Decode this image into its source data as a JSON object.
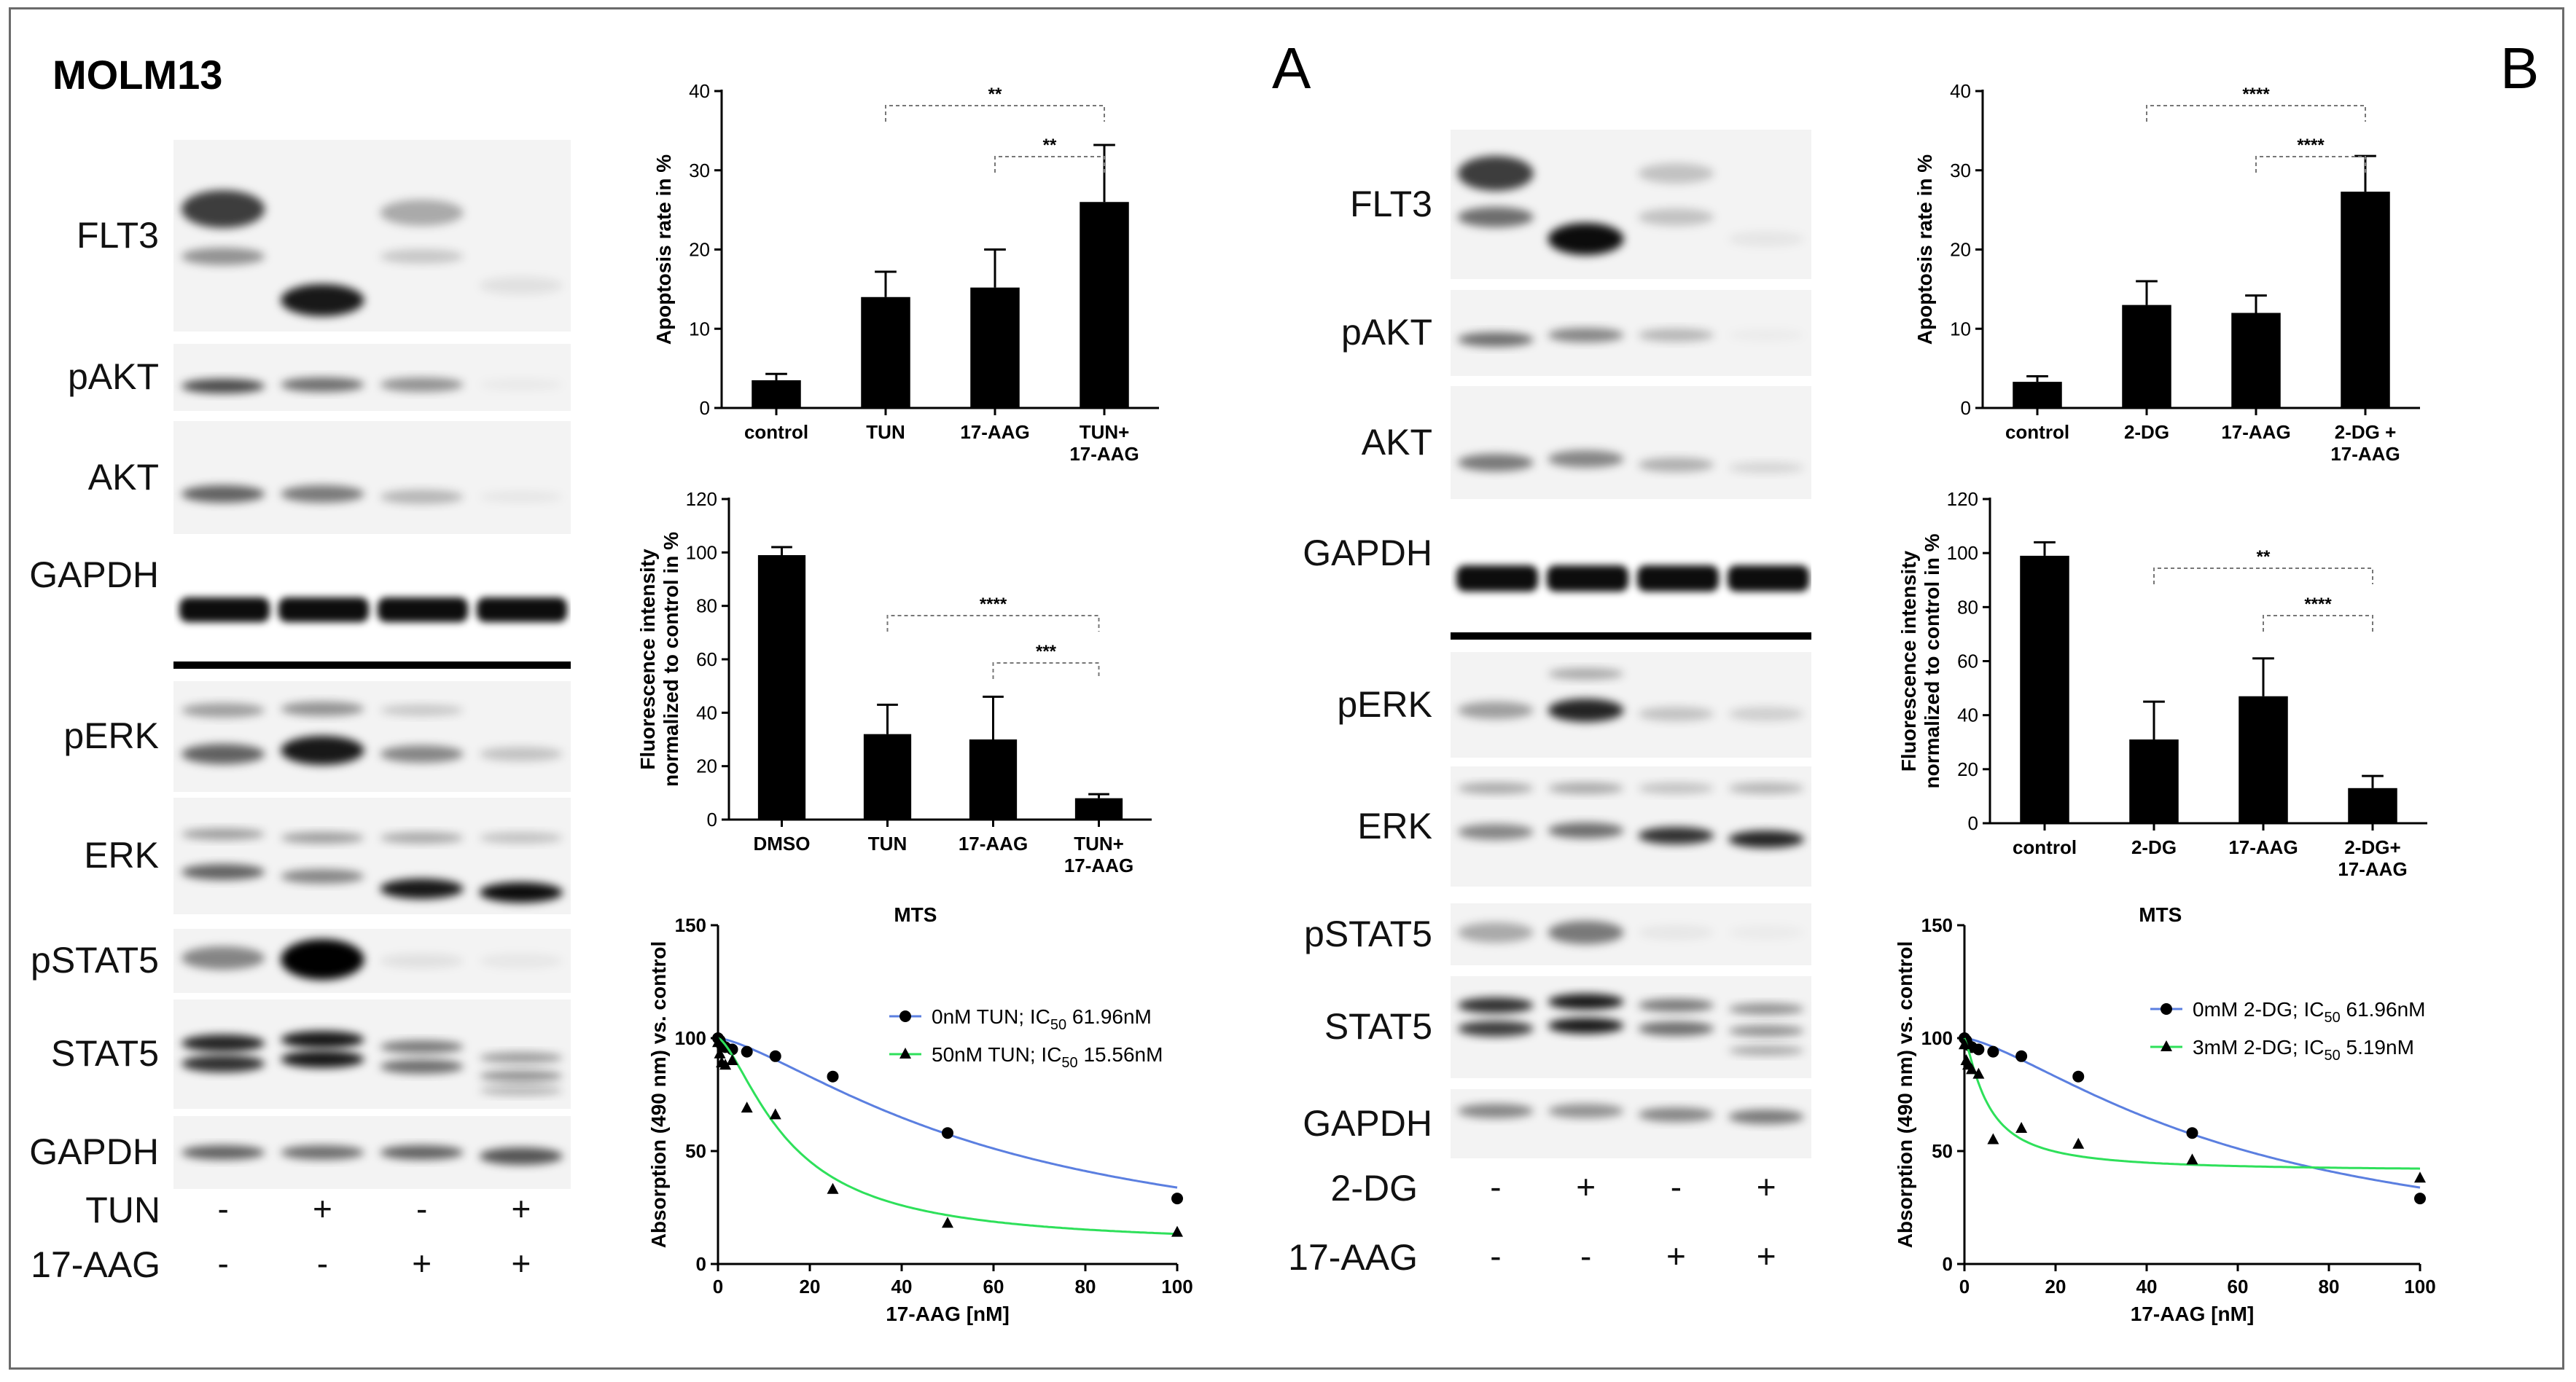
{
  "panel_a": {
    "cell_line": "MOLM13",
    "letter": "A",
    "blot_labels": [
      "FLT3",
      "pAKT",
      "AKT",
      "GAPDH",
      "pERK",
      "ERK",
      "pSTAT5",
      "STAT5",
      "GAPDH"
    ],
    "treatment_rows": [
      {
        "label": "TUN",
        "signs": [
          "-",
          "+",
          "-",
          "+"
        ]
      },
      {
        "label": "17-AAG",
        "signs": [
          "-",
          "-",
          "+",
          "+"
        ]
      }
    ]
  },
  "panel_b": {
    "letter": "B",
    "blot_labels": [
      "FLT3",
      "pAKT",
      "AKT",
      "GAPDH",
      "pERK",
      "ERK",
      "pSTAT5",
      "STAT5",
      "GAPDH"
    ],
    "treatment_rows": [
      {
        "label": "2-DG",
        "signs": [
          "-",
          "+",
          "-",
          "+"
        ]
      },
      {
        "label": "17-AAG",
        "signs": [
          "-",
          "-",
          "+",
          "+"
        ]
      }
    ]
  },
  "chart_data": [
    {
      "id": "a_apoptosis",
      "type": "bar",
      "ylabel": "Apoptosis rate in %",
      "ylim": [
        0,
        40
      ],
      "yticks": [
        0,
        10,
        20,
        30,
        40
      ],
      "categories": [
        "control",
        "TUN",
        "17-AAG",
        "TUN+\n17-AAG"
      ],
      "values": [
        3.5,
        14,
        15.2,
        26
      ],
      "errors": [
        0.8,
        3.2,
        4.8,
        7.2
      ],
      "significance": [
        {
          "from": 1,
          "to": 3,
          "label": "**"
        },
        {
          "from": 2,
          "to": 3,
          "label": "**"
        }
      ]
    },
    {
      "id": "a_fluor",
      "type": "bar",
      "ylabel": "Fluorescence intensity\nnormalized to control in %",
      "ylim": [
        0,
        120
      ],
      "yticks": [
        0,
        20,
        40,
        60,
        80,
        100,
        120
      ],
      "categories": [
        "DMSO",
        "TUN",
        "17-AAG",
        "TUN+\n17-AAG"
      ],
      "values": [
        99,
        32,
        30,
        8
      ],
      "errors": [
        3,
        11,
        16,
        1.5
      ],
      "significance": [
        {
          "from": 1,
          "to": 3,
          "label": "****"
        },
        {
          "from": 2,
          "to": 3,
          "label": "***"
        }
      ]
    },
    {
      "id": "a_mts",
      "type": "scatter",
      "title": "MTS",
      "xlabel": "17-AAG [nM]",
      "ylabel": "Absorption (490 nm) vs. control",
      "xlim": [
        0,
        100
      ],
      "ylim": [
        0,
        150
      ],
      "xticks": [
        0,
        20,
        40,
        60,
        80,
        100
      ],
      "yticks": [
        0,
        50,
        100,
        150
      ],
      "series": [
        {
          "name": "0nM TUN; IC",
          "sub": "50",
          "suffix": " 61.96nM",
          "color": "#5b7fe0",
          "marker": "circle",
          "x": [
            0,
            0.4,
            0.8,
            1.6,
            3.1,
            6.3,
            12.5,
            25,
            50,
            100
          ],
          "y": [
            100,
            99,
            97,
            96,
            95,
            94,
            92,
            83,
            58,
            29
          ],
          "fit": {
            "top": 100,
            "bottom": 0,
            "ic50": 61.96,
            "hill": 1.4
          }
        },
        {
          "name": "50nM TUN; IC",
          "sub": "50",
          "suffix": " 15.56nM",
          "color": "#2ee05a",
          "marker": "triangle",
          "x": [
            0,
            0.4,
            0.8,
            1.6,
            3.1,
            6.3,
            12.5,
            25,
            50,
            100
          ],
          "y": [
            98,
            93,
            89,
            88,
            90,
            69,
            66,
            33,
            18,
            14
          ],
          "fit": {
            "top": 100,
            "bottom": 8,
            "ic50": 15.56,
            "hill": 1.5
          }
        }
      ]
    },
    {
      "id": "b_apoptosis",
      "type": "bar",
      "ylabel": "Apoptosis rate in %",
      "ylim": [
        0,
        40
      ],
      "yticks": [
        0,
        10,
        20,
        30,
        40
      ],
      "categories": [
        "control",
        "2-DG",
        "17-AAG",
        "2-DG +\n17-AAG"
      ],
      "values": [
        3.3,
        13,
        12,
        27.3
      ],
      "errors": [
        0.7,
        3,
        2.2,
        4.5
      ],
      "significance": [
        {
          "from": 1,
          "to": 3,
          "label": "****"
        },
        {
          "from": 2,
          "to": 3,
          "label": "****"
        }
      ]
    },
    {
      "id": "b_fluor",
      "type": "bar",
      "ylabel": "Fluorescence intensity\nnormalized to control in %",
      "ylim": [
        0,
        120
      ],
      "yticks": [
        0,
        20,
        40,
        60,
        80,
        100,
        120
      ],
      "categories": [
        "control",
        "2-DG",
        "17-AAG",
        "2-DG+\n17-AAG"
      ],
      "values": [
        99,
        31,
        47,
        13
      ],
      "errors": [
        5,
        14,
        14,
        4.5
      ],
      "significance": [
        {
          "from": 1,
          "to": 3,
          "label": "**"
        },
        {
          "from": 2,
          "to": 3,
          "label": "****"
        }
      ]
    },
    {
      "id": "b_mts",
      "type": "scatter",
      "title": "MTS",
      "xlabel": "17-AAG [nM]",
      "ylabel": "Absorption (490 nm) vs. control",
      "xlim": [
        0,
        100
      ],
      "ylim": [
        0,
        150
      ],
      "xticks": [
        0,
        20,
        40,
        60,
        80,
        100
      ],
      "yticks": [
        0,
        50,
        100,
        150
      ],
      "series": [
        {
          "name": "0mM 2-DG; IC",
          "sub": "50",
          "suffix": " 61.96nM",
          "color": "#5b7fe0",
          "marker": "circle",
          "x": [
            0,
            0.4,
            0.8,
            1.6,
            3.1,
            6.3,
            12.5,
            25,
            50,
            100
          ],
          "y": [
            100,
            99,
            97,
            96,
            95,
            94,
            92,
            83,
            58,
            29
          ],
          "fit": {
            "top": 100,
            "bottom": 0,
            "ic50": 61.96,
            "hill": 1.4
          }
        },
        {
          "name": "3mM 2-DG; IC",
          "sub": "50",
          "suffix": " 5.19nM",
          "color": "#2ee05a",
          "marker": "triangle",
          "x": [
            0,
            0.4,
            0.8,
            1.6,
            3.1,
            6.3,
            12.5,
            25,
            50,
            100
          ],
          "y": [
            97,
            90,
            88,
            86,
            84,
            55,
            60,
            53,
            46,
            38
          ],
          "fit": {
            "top": 100,
            "bottom": 41,
            "ic50": 5.19,
            "hill": 1.3
          }
        }
      ]
    }
  ]
}
